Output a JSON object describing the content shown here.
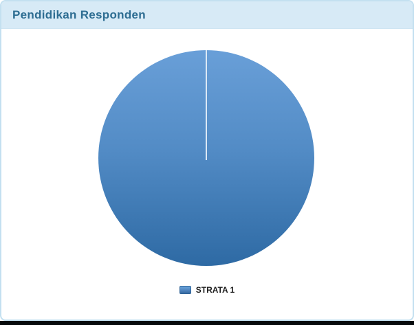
{
  "card": {
    "title": "Pendidikan Responden"
  },
  "chart_data": {
    "type": "pie",
    "title": "Pendidikan Responden",
    "categories": [
      "STRATA 1"
    ],
    "values": [
      100
    ],
    "value_unit": "percent_of_total",
    "start_angle_deg": 0,
    "legend_position": "bottom",
    "slice_colors": [
      "#4f81bc"
    ],
    "slice_gradient": {
      "top": "#699fd8",
      "bottom": "#2e6aa4"
    },
    "slice_border_color": "#dce9f6"
  },
  "legend": {
    "items": [
      {
        "label": "STRATA 1",
        "color": "#4f81bc"
      }
    ]
  },
  "colors": {
    "header_background": "#d7eaf6",
    "header_text": "#2d6d92",
    "card_border": "#c3e0f0",
    "card_background": "#ffffff",
    "bottom_strip": "#060a0c",
    "legend_text": "#1e1e1e"
  }
}
